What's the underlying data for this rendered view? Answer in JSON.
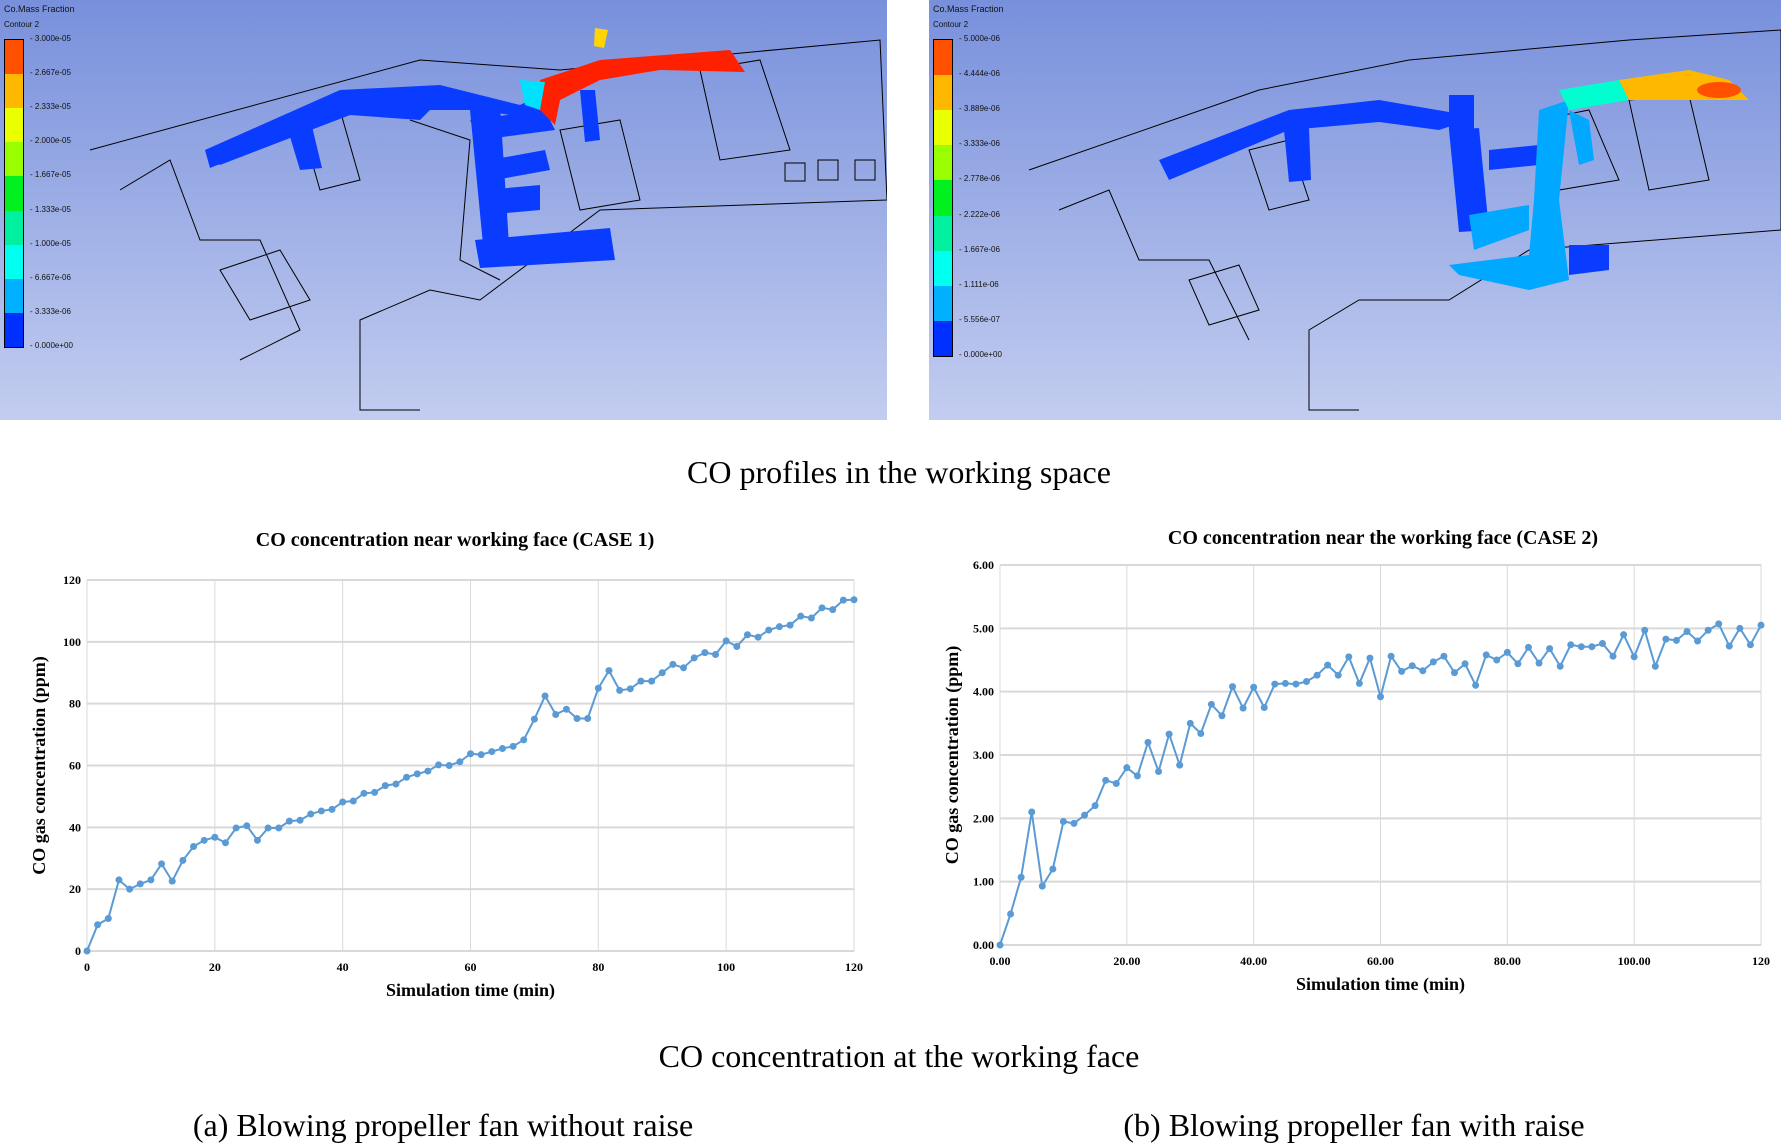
{
  "panels": [
    {
      "legend_title": "Co.Mass Fraction",
      "legend_sub": "Contour 2",
      "ticks": [
        "3.000e-05",
        "2.667e-05",
        "2.333e-05",
        "2.000e-05",
        "1.667e-05",
        "1.333e-05",
        "1.000e-05",
        "6.667e-06",
        "3.333e-06",
        "0.000e+00"
      ]
    },
    {
      "legend_title": "Co.Mass Fraction",
      "legend_sub": "Contour 2",
      "ticks": [
        "5.000e-06",
        "4.444e-06",
        "3.889e-06",
        "3.333e-06",
        "2.778e-06",
        "2.222e-06",
        "1.667e-06",
        "1.111e-06",
        "5.556e-07",
        "0.000e+00"
      ]
    }
  ],
  "legend_colors": [
    "#ff5000",
    "#ffb800",
    "#eaff00",
    "#99ff00",
    "#00f020",
    "#00f0a0",
    "#00ffee",
    "#00b0ff",
    "#0030ff"
  ],
  "captions": {
    "profiles": "CO profiles in the working space",
    "concentration": "CO concentration at the working face",
    "a": "(a) Blowing propeller fan without raise",
    "b": "(b) Blowing propeller fan with raise"
  },
  "chart_data": [
    {
      "type": "line",
      "title": "CO concentration  near working  face (CASE 1)",
      "xlabel": "Simulation time (min)",
      "ylabel": "CO gas concentration  (ppm)",
      "xlim": [
        0,
        120
      ],
      "ylim": [
        0,
        120
      ],
      "xticks": [
        "0",
        "20",
        "40",
        "60",
        "80",
        "100",
        "120"
      ],
      "yticks": [
        "0",
        "20",
        "40",
        "60",
        "80",
        "100",
        "120"
      ],
      "color": "#5b9bd5",
      "grid": true,
      "values": [
        0,
        8.5,
        10.5,
        23,
        20,
        21.7,
        23,
        28.2,
        22.6,
        29.3,
        33.8,
        35.8,
        36.8,
        35,
        39.8,
        40.5,
        35.8,
        39.8,
        39.8,
        42,
        42.3,
        44.3,
        45.3,
        45.8,
        48.2,
        48.5,
        51,
        51.3,
        53.5,
        54,
        56.2,
        57.3,
        58.2,
        60.2,
        60,
        61.2,
        63.8,
        63.5,
        64.5,
        65.5,
        66.2,
        68.3,
        75,
        82.5,
        76.5,
        78.2,
        75.2,
        75.2,
        85,
        90.7,
        84.3,
        84.8,
        87.3,
        87.3,
        90,
        92.7,
        91.6,
        94.8,
        96.5,
        95.9,
        100.3,
        98.5,
        102.3,
        101.5,
        103.8,
        104.9,
        105.4,
        108.3,
        107.7,
        111,
        110.4,
        113.5,
        113.6
      ]
    },
    {
      "type": "line",
      "title": "CO concentration  near the working  face (CASE 2)",
      "xlabel": "Simulation time (min)",
      "ylabel": "CO gas concentration  (ppm)",
      "xlim": [
        0,
        120
      ],
      "ylim": [
        0,
        6
      ],
      "xticks": [
        "0.00",
        "20.00",
        "40.00",
        "60.00",
        "80.00",
        "100.00",
        "120"
      ],
      "yticks": [
        "0.00",
        "1.00",
        "2.00",
        "3.00",
        "4.00",
        "5.00",
        "6.00"
      ],
      "color": "#5b9bd5",
      "grid": true,
      "values": [
        0,
        0.49,
        1.07,
        2.1,
        0.93,
        1.2,
        1.95,
        1.92,
        2.05,
        2.2,
        2.6,
        2.55,
        2.8,
        2.67,
        3.2,
        2.74,
        3.33,
        2.84,
        3.5,
        3.34,
        3.8,
        3.62,
        4.08,
        3.74,
        4.07,
        3.75,
        4.12,
        4.13,
        4.12,
        4.16,
        4.26,
        4.42,
        4.26,
        4.55,
        4.13,
        4.53,
        3.92,
        4.56,
        4.32,
        4.41,
        4.33,
        4.47,
        4.56,
        4.3,
        4.44,
        4.1,
        4.58,
        4.5,
        4.62,
        4.44,
        4.7,
        4.45,
        4.68,
        4.4,
        4.74,
        4.71,
        4.71,
        4.76,
        4.56,
        4.9,
        4.55,
        4.97,
        4.4,
        4.83,
        4.81,
        4.95,
        4.8,
        4.97,
        5.07,
        4.72,
        5.0,
        4.74,
        5.05
      ]
    }
  ]
}
